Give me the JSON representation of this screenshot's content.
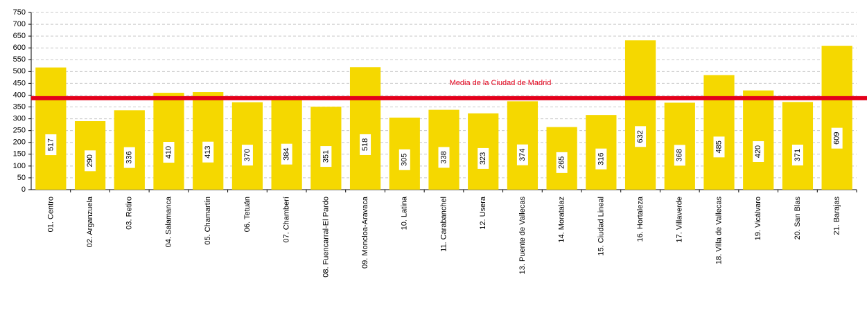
{
  "chart_data": {
    "type": "bar",
    "categories": [
      "01. Centro",
      "02. Arganzuela",
      "03. Retiro",
      "04. Salamanca",
      "05. Chamartín",
      "06. Tetuán",
      "07. Chamberí",
      "08. Fuencarral-El Pardo",
      "09. Moncloa-Aravaca",
      "10. Latina",
      "11. Carabanchel",
      "12. Usera",
      "13. Puente de Vallecas",
      "14. Moratalaz",
      "15. Ciudad Lineal",
      "16. Hortaleza",
      "17. Villaverde",
      "18. Villa de Vallecas",
      "19. Vicálvaro",
      "20. San Blas",
      "21. Barajas"
    ],
    "values": [
      517,
      290,
      336,
      410,
      413,
      370,
      384,
      351,
      518,
      305,
      338,
      323,
      374,
      265,
      316,
      632,
      368,
      485,
      420,
      371,
      609
    ],
    "color": "#f5d800",
    "ylim": [
      0,
      750
    ],
    "yticks": [
      0,
      50,
      100,
      150,
      200,
      250,
      300,
      350,
      400,
      450,
      500,
      550,
      600,
      650,
      700,
      750
    ],
    "grid": true,
    "reference_line": {
      "value": 387,
      "label": "Media de la Ciudad de Madrid",
      "color": "#e3001b"
    }
  }
}
